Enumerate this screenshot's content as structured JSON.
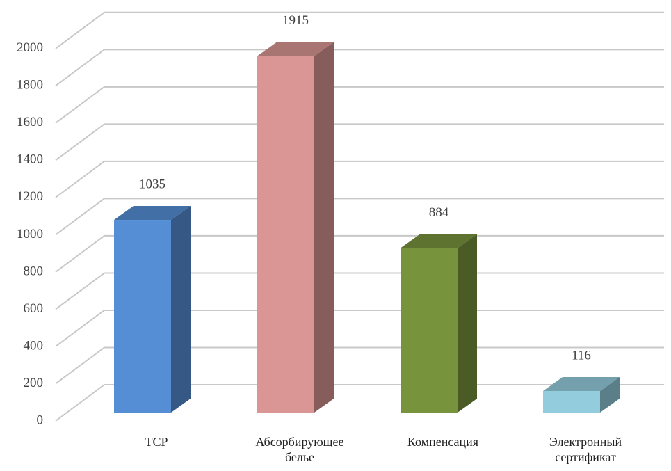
{
  "chart_data": {
    "type": "bar3d",
    "categories": [
      "ТСР",
      "Абсорбирующее белье",
      "Компенсация",
      "Электронный сертификат"
    ],
    "values": [
      1035,
      1915,
      884,
      116
    ],
    "colors": [
      "#558ed5",
      "#d99694",
      "#77933c",
      "#93cddd"
    ],
    "ylim": [
      0,
      2000
    ],
    "yticks": [
      0,
      200,
      400,
      600,
      800,
      1000,
      1200,
      1400,
      1600,
      1800,
      2000
    ],
    "grid": true
  }
}
